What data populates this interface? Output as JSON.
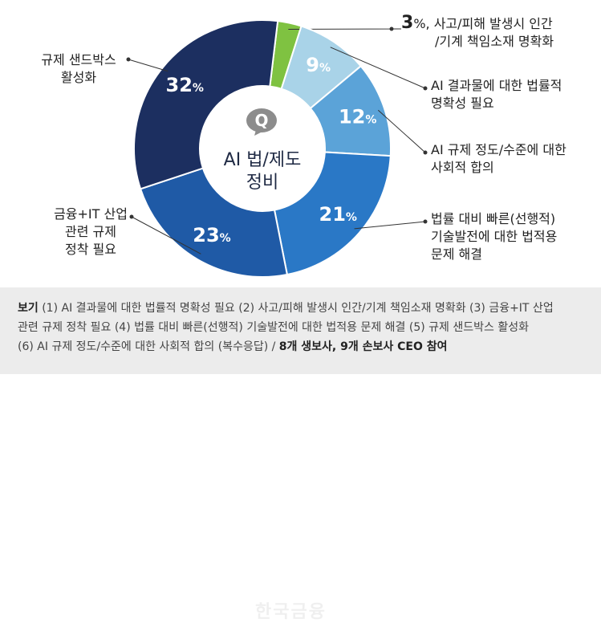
{
  "chart_data": {
    "type": "pie",
    "donut": true,
    "center_label": [
      "AI 법/제도",
      "정비"
    ],
    "slices": [
      {
        "key": "accident",
        "value": 3,
        "display": "3",
        "unit": "%",
        "color": "#7fc241",
        "label_lines": [
          "사고/피해 발생시 인간",
          "/기계 책임소재 명확화"
        ]
      },
      {
        "key": "ai_output",
        "value": 9,
        "display": "9",
        "unit": "%",
        "color": "#a9d3e8",
        "label_lines": [
          "AI 결과물에 대한 법률적",
          "명확성 필요"
        ]
      },
      {
        "key": "ai_reg",
        "value": 12,
        "display": "12",
        "unit": "%",
        "color": "#5ba3d8",
        "label_lines": [
          "AI 규제 정도/수준에 대한",
          "사회적 합의"
        ]
      },
      {
        "key": "tech_law",
        "value": 21,
        "display": "21",
        "unit": "%",
        "color": "#2a78c6",
        "label_lines": [
          "법률 대비 빠른(선행적)",
          "기술발전에 대한 법적용",
          "문제 해결"
        ]
      },
      {
        "key": "fin_it",
        "value": 23,
        "display": "23",
        "unit": "%",
        "color": "#1f5aa6",
        "label_lines": [
          "금융+IT 산업",
          "관련 규제",
          "정착 필요"
        ]
      },
      {
        "key": "sandbox",
        "value": 32,
        "display": "32",
        "unit": "%",
        "color": "#1c2f60",
        "label_lines": [
          "규제 샌드박스",
          "활성화"
        ]
      }
    ]
  },
  "center_icon": "q-speech-bubble-icon",
  "center_icon_text": "Q",
  "note": {
    "label": "보기",
    "lines": [
      "(1) AI 결과물에 대한 법률적 명확성 필요 (2) 사고/피해 발생시 인간/기계 책임소재 명확화 (3) 금융+IT 산업",
      "관련 규제 정착 필요 (4) 법률 대비 빠른(선행적) 기술발전에 대한 법적용 문제 해결 (5) 규제 샌드박스 활성화",
      "(6) AI 규제 정도/수준에 대한 사회적 합의 (복수응답) / "
    ],
    "emphasis": "8개 생보사, 9개 손보사 CEO 참여"
  },
  "watermark": "한국금융"
}
